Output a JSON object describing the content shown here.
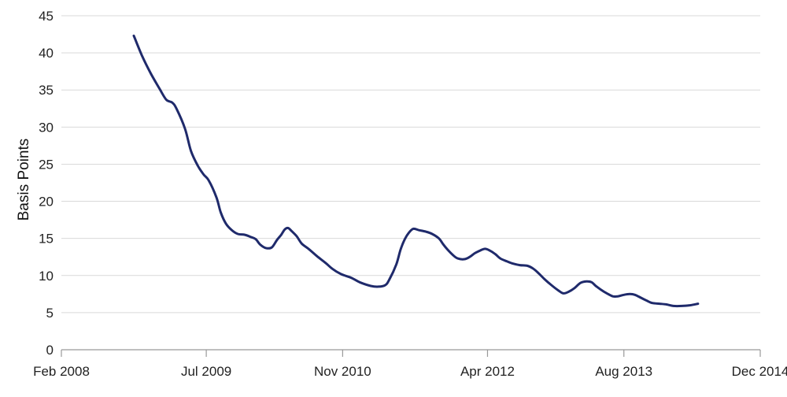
{
  "chart_data": {
    "type": "line",
    "title": "",
    "xlabel": "",
    "ylabel": "Basis Points",
    "ylim": [
      0,
      45
    ],
    "yticks": [
      0,
      5,
      10,
      15,
      20,
      25,
      30,
      35,
      40,
      45
    ],
    "xlim": [
      0,
      82
    ],
    "xticks": [
      {
        "t": 0,
        "label": "Feb 2008"
      },
      {
        "t": 17,
        "label": "Jul 2009"
      },
      {
        "t": 33,
        "label": "Nov 2010"
      },
      {
        "t": 50,
        "label": "Apr 2012"
      },
      {
        "t": 66,
        "label": "Aug 2013"
      },
      {
        "t": 82,
        "label": "Dec 2014"
      }
    ],
    "grid": true,
    "colors": {
      "line": "#1f2a6b",
      "grid": "#d9d9d9",
      "axis": "#999999"
    },
    "series": [
      {
        "name": "Basis Points",
        "points": [
          [
            8.5,
            42.3
          ],
          [
            9.5,
            39.5
          ],
          [
            10.5,
            37.2
          ],
          [
            11.5,
            35.2
          ],
          [
            12.3,
            33.7
          ],
          [
            13,
            33.3
          ],
          [
            13.5,
            32.5
          ],
          [
            14.5,
            29.8
          ],
          [
            15.2,
            26.8
          ],
          [
            16,
            24.8
          ],
          [
            16.7,
            23.6
          ],
          [
            17.3,
            22.8
          ],
          [
            18.2,
            20.5
          ],
          [
            18.7,
            18.5
          ],
          [
            19.3,
            17.0
          ],
          [
            20,
            16.1
          ],
          [
            20.7,
            15.6
          ],
          [
            21.5,
            15.5
          ],
          [
            22.2,
            15.2
          ],
          [
            22.8,
            14.9
          ],
          [
            23.3,
            14.2
          ],
          [
            24,
            13.7
          ],
          [
            24.7,
            13.8
          ],
          [
            25.3,
            14.8
          ],
          [
            25.8,
            15.5
          ],
          [
            26.2,
            16.2
          ],
          [
            26.6,
            16.4
          ],
          [
            27,
            16.0
          ],
          [
            27.6,
            15.3
          ],
          [
            28.2,
            14.3
          ],
          [
            29,
            13.6
          ],
          [
            30,
            12.6
          ],
          [
            31,
            11.7
          ],
          [
            31.8,
            10.9
          ],
          [
            32.8,
            10.2
          ],
          [
            34,
            9.7
          ],
          [
            35,
            9.1
          ],
          [
            36.3,
            8.6
          ],
          [
            37.2,
            8.5
          ],
          [
            38,
            8.7
          ],
          [
            38.5,
            9.5
          ],
          [
            39.3,
            11.5
          ],
          [
            39.8,
            13.5
          ],
          [
            40.3,
            14.9
          ],
          [
            40.8,
            15.8
          ],
          [
            41.3,
            16.3
          ],
          [
            42,
            16.1
          ],
          [
            42.8,
            15.9
          ],
          [
            43.5,
            15.6
          ],
          [
            44.3,
            15.0
          ],
          [
            44.8,
            14.2
          ],
          [
            45.3,
            13.5
          ],
          [
            45.9,
            12.8
          ],
          [
            46.5,
            12.3
          ],
          [
            47.3,
            12.2
          ],
          [
            47.9,
            12.5
          ],
          [
            48.5,
            13.0
          ],
          [
            49.2,
            13.4
          ],
          [
            49.7,
            13.6
          ],
          [
            50.2,
            13.4
          ],
          [
            50.9,
            12.9
          ],
          [
            51.5,
            12.3
          ],
          [
            52.3,
            11.9
          ],
          [
            53,
            11.6
          ],
          [
            53.8,
            11.4
          ],
          [
            54.7,
            11.3
          ],
          [
            55.4,
            10.9
          ],
          [
            56,
            10.3
          ],
          [
            56.7,
            9.5
          ],
          [
            57.5,
            8.7
          ],
          [
            58.3,
            8.0
          ],
          [
            58.9,
            7.6
          ],
          [
            59.5,
            7.8
          ],
          [
            60.2,
            8.3
          ],
          [
            60.9,
            9.0
          ],
          [
            61.6,
            9.2
          ],
          [
            62.2,
            9.1
          ],
          [
            62.7,
            8.6
          ],
          [
            63.3,
            8.1
          ],
          [
            64,
            7.6
          ],
          [
            64.7,
            7.2
          ],
          [
            65.3,
            7.2
          ],
          [
            66,
            7.4
          ],
          [
            66.7,
            7.5
          ],
          [
            67.3,
            7.4
          ],
          [
            68,
            7.0
          ],
          [
            68.7,
            6.6
          ],
          [
            69.3,
            6.3
          ],
          [
            70.2,
            6.2
          ],
          [
            71,
            6.1
          ],
          [
            71.8,
            5.9
          ],
          [
            72.8,
            5.9
          ],
          [
            73.8,
            6.0
          ],
          [
            74.7,
            6.2
          ]
        ]
      }
    ]
  }
}
